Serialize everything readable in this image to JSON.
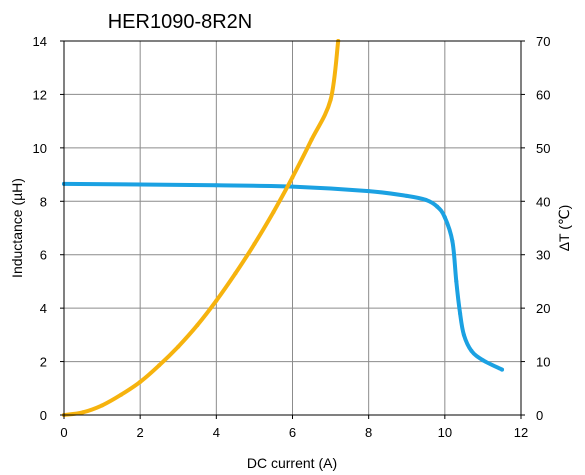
{
  "chart_data": {
    "type": "line",
    "title": "HER1090-8R2N",
    "xlabel": "DC current (A)",
    "ylabel": "Inductance (µH)",
    "y2label": "ΔT (℃)",
    "xlim": [
      0,
      12
    ],
    "ylim": [
      0,
      14
    ],
    "y2lim": [
      0,
      70
    ],
    "xticks": [
      "0",
      "2",
      "4",
      "6",
      "8",
      "10",
      "12"
    ],
    "yticks": [
      "0",
      "2",
      "4",
      "6",
      "8",
      "10",
      "12",
      "14"
    ],
    "y2ticks": [
      "0",
      "10",
      "20",
      "30",
      "40",
      "50",
      "60",
      "70"
    ],
    "grid": true,
    "series": [
      {
        "axis": "left",
        "color": "#1BA1E2",
        "x": [
          0,
          2,
          4,
          6,
          8,
          9,
          9.5,
          9.8,
          10,
          10.2,
          10.3,
          10.4,
          10.5,
          10.7,
          11,
          11.5
        ],
        "y": [
          8.65,
          8.63,
          8.6,
          8.55,
          8.38,
          8.2,
          8.05,
          7.8,
          7.4,
          6.5,
          5.0,
          3.8,
          3.0,
          2.4,
          2.05,
          1.7
        ]
      },
      {
        "axis": "right",
        "color": "#F6B30E",
        "x": [
          0,
          0.5,
          1,
          1.5,
          2,
          2.5,
          3,
          3.5,
          4,
          4.5,
          5,
          5.5,
          6,
          6.5,
          7,
          7.2
        ],
        "y": [
          0,
          0.5,
          1.8,
          3.8,
          6.2,
          9.3,
          12.8,
          16.8,
          21.4,
          26.5,
          32.0,
          38.0,
          44.5,
          51.5,
          59.0,
          70.0
        ]
      }
    ]
  }
}
